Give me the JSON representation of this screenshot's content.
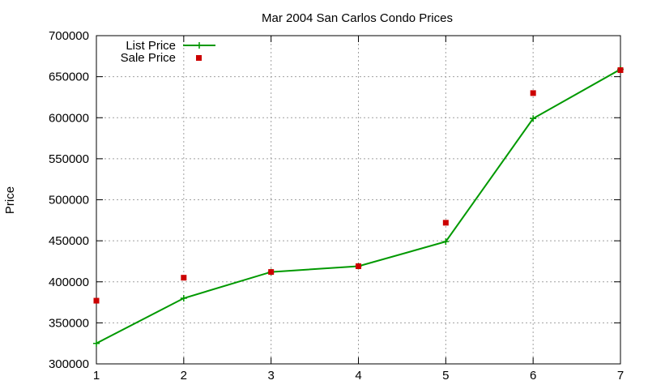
{
  "chart_data": {
    "type": "line",
    "title": "Mar 2004 San Carlos Condo Prices",
    "xlabel": "",
    "ylabel": "Price",
    "x": [
      1,
      2,
      3,
      4,
      5,
      6,
      7
    ],
    "xlim": [
      1,
      7
    ],
    "ylim": [
      300000,
      700000
    ],
    "xticks": [
      "1",
      "2",
      "3",
      "4",
      "5",
      "6",
      "7"
    ],
    "yticks": [
      "300000",
      "350000",
      "400000",
      "450000",
      "500000",
      "550000",
      "600000",
      "650000",
      "700000"
    ],
    "grid": true,
    "legend_position": "top-left",
    "series": [
      {
        "name": "List Price",
        "style": "line-with-plus-markers",
        "color": "#009900",
        "values": [
          325000,
          380000,
          412000,
          419000,
          449000,
          599000,
          659000
        ]
      },
      {
        "name": "Sale Price",
        "style": "square-markers",
        "color": "#cc0000",
        "values": [
          377000,
          405000,
          412000,
          419000,
          472000,
          630000,
          658000
        ]
      }
    ]
  }
}
